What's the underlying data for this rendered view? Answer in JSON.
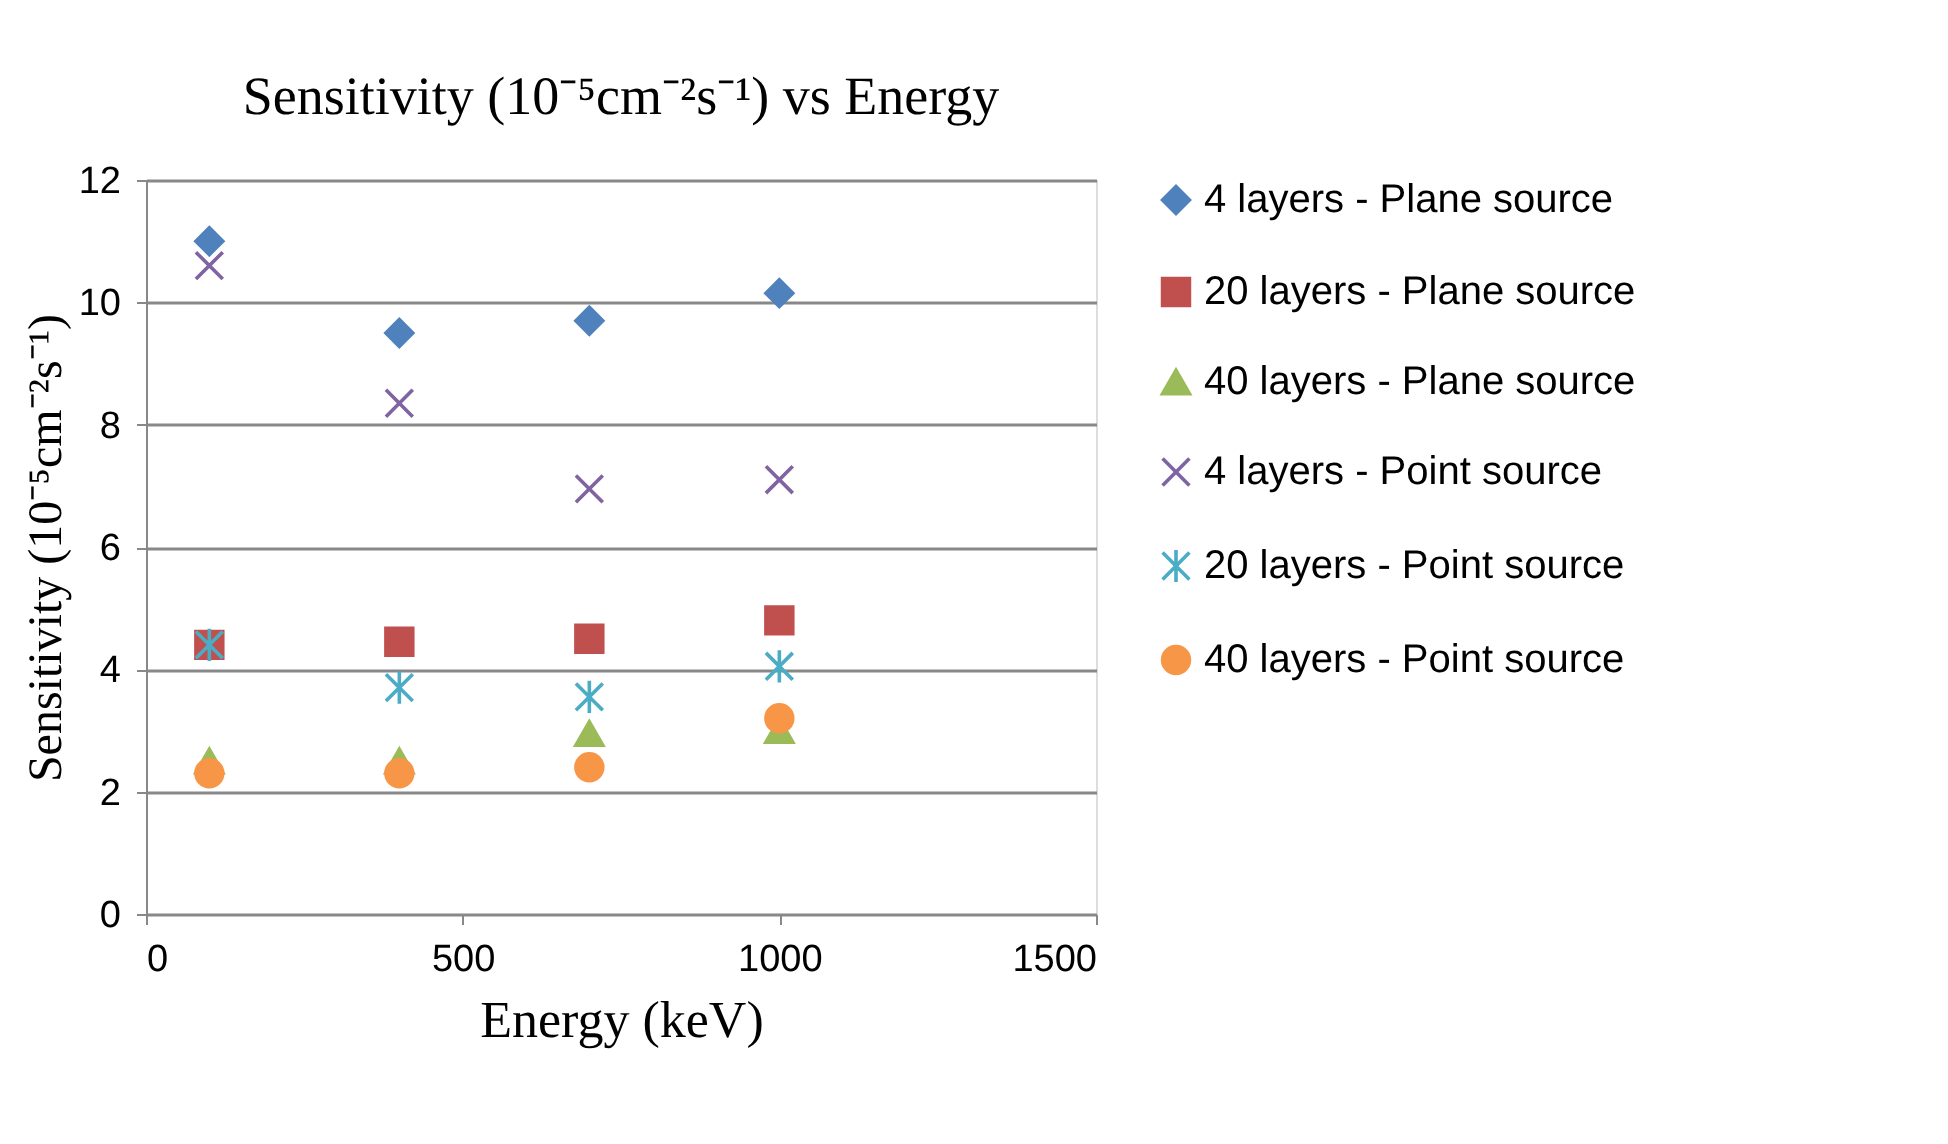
{
  "chart_data": {
    "type": "scatter",
    "title": "Sensitivity (10⁻⁵cm⁻²s⁻¹) vs Energy",
    "xlabel": "Energy (keV)",
    "ylabel": "Sensitivity (10⁻⁵cm⁻²s⁻¹)",
    "x": [
      100,
      400,
      700,
      1000
    ],
    "series": [
      {
        "name": "4 layers - Plane source",
        "color": "#4f81bd",
        "marker": "diamond",
        "values": [
          11.0,
          9.5,
          9.7,
          10.15
        ]
      },
      {
        "name": "20 layers - Plane source",
        "color": "#c0504d",
        "marker": "square",
        "values": [
          4.4,
          4.45,
          4.5,
          4.8
        ]
      },
      {
        "name": "40 layers - Plane source",
        "color": "#9bbb59",
        "marker": "triangle",
        "values": [
          2.5,
          2.5,
          2.95,
          3.0
        ]
      },
      {
        "name": "4 layers - Point source",
        "color": "#8064a2",
        "marker": "cross",
        "values": [
          10.6,
          8.35,
          6.95,
          7.1
        ]
      },
      {
        "name": "20 layers - Point source",
        "color": "#4bacc6",
        "marker": "cross",
        "values": [
          4.4,
          3.7,
          3.55,
          4.05
        ]
      },
      {
        "name": "40 layers - Point source",
        "color": "#f79646",
        "marker": "circle",
        "values": [
          2.3,
          2.3,
          2.4,
          3.2
        ]
      }
    ],
    "xlim": [
      0,
      1500
    ],
    "xticks": [
      0,
      500,
      1000,
      1500
    ],
    "ylim": [
      0,
      12
    ],
    "yticks": [
      0,
      2,
      4,
      6,
      8,
      10,
      12
    ],
    "grid": "y",
    "legend": "right"
  }
}
